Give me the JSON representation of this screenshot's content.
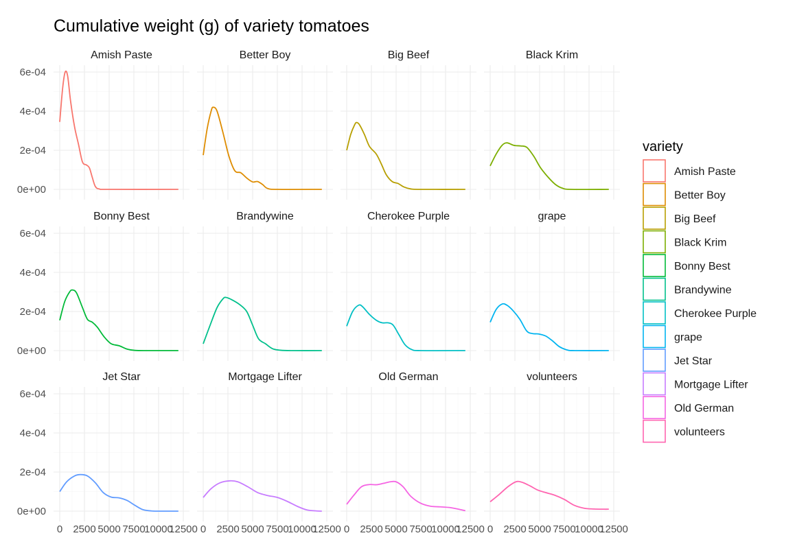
{
  "chart_data": {
    "type": "line",
    "subtype": "density",
    "title": "Cumulative weight (g) of variety tomatoes",
    "xlabel": "",
    "ylabel": "",
    "xlim": [
      0,
      12500
    ],
    "ylim": [
      0,
      0.00062
    ],
    "x_ticks": [
      0,
      2500,
      5000,
      7500,
      10000,
      12500
    ],
    "x_tick_labels": [
      "0",
      "2500",
      "5000",
      "7500",
      "10000",
      "12500"
    ],
    "y_ticks": [
      0,
      0.0002,
      0.0004,
      0.0006
    ],
    "y_tick_labels": [
      "0e+00",
      "2e-04",
      "4e-04",
      "6e-04"
    ],
    "grid": true,
    "facet_layout": "4 columns x 3 rows",
    "legend": {
      "title": "variety",
      "position": "right"
    },
    "series": [
      {
        "name": "Amish Paste",
        "color": "#F8766D",
        "points": [
          [
            0,
            0.000345
          ],
          [
            300,
            0.00052
          ],
          [
            550,
            0.0006
          ],
          [
            800,
            0.00058
          ],
          [
            1100,
            0.00045
          ],
          [
            1500,
            0.00032
          ],
          [
            1900,
            0.00023
          ],
          [
            2300,
            0.00014
          ],
          [
            2700,
            0.000125
          ],
          [
            3000,
            0.00011
          ],
          [
            3300,
            6e-05
          ],
          [
            3600,
            1.5e-05
          ],
          [
            4000,
            2e-06
          ],
          [
            5000,
            0
          ],
          [
            12000,
            0
          ]
        ]
      },
      {
        "name": "Better Boy",
        "color": "#DE8C00",
        "points": [
          [
            0,
            0.000175
          ],
          [
            400,
            0.00031
          ],
          [
            800,
            0.0004
          ],
          [
            1000,
            0.00042
          ],
          [
            1400,
            0.0004
          ],
          [
            2000,
            0.00029
          ],
          [
            2600,
            0.00017
          ],
          [
            3200,
            9.5e-05
          ],
          [
            3800,
            8.5e-05
          ],
          [
            4400,
            5.8e-05
          ],
          [
            5000,
            3.8e-05
          ],
          [
            5500,
            4e-05
          ],
          [
            6000,
            2.5e-05
          ],
          [
            6500,
            5e-06
          ],
          [
            7500,
            0
          ],
          [
            12000,
            0
          ]
        ]
      },
      {
        "name": "Big Beef",
        "color": "#B79F00",
        "points": [
          [
            0,
            0.0002
          ],
          [
            400,
            0.00028
          ],
          [
            800,
            0.00033
          ],
          [
            1000,
            0.000342
          ],
          [
            1300,
            0.00033
          ],
          [
            1800,
            0.00028
          ],
          [
            2300,
            0.00022
          ],
          [
            3000,
            0.00018
          ],
          [
            3500,
            0.00013
          ],
          [
            4000,
            7.5e-05
          ],
          [
            4600,
            4e-05
          ],
          [
            5200,
            3e-05
          ],
          [
            5800,
            1.2e-05
          ],
          [
            6500,
            2e-06
          ],
          [
            7500,
            0
          ],
          [
            12000,
            0
          ]
        ]
      },
      {
        "name": "Black Krim",
        "color": "#7CAE00",
        "points": [
          [
            0,
            0.00012
          ],
          [
            600,
            0.00018
          ],
          [
            1200,
            0.000225
          ],
          [
            1700,
            0.000238
          ],
          [
            2400,
            0.000225
          ],
          [
            3100,
            0.000222
          ],
          [
            3700,
            0.000215
          ],
          [
            4400,
            0.00017
          ],
          [
            5100,
            0.00011
          ],
          [
            5900,
            6e-05
          ],
          [
            6600,
            2.5e-05
          ],
          [
            7300,
            6e-06
          ],
          [
            8200,
            0
          ],
          [
            12000,
            0
          ]
        ]
      },
      {
        "name": "Bonny Best",
        "color": "#00BA38",
        "points": [
          [
            0,
            0.000155
          ],
          [
            500,
            0.00025
          ],
          [
            1000,
            0.0003
          ],
          [
            1300,
            0.00031
          ],
          [
            1700,
            0.000295
          ],
          [
            2300,
            0.00022
          ],
          [
            2800,
            0.00016
          ],
          [
            3300,
            0.000145
          ],
          [
            3800,
            0.00012
          ],
          [
            4500,
            7e-05
          ],
          [
            5200,
            3.5e-05
          ],
          [
            6000,
            2.5e-05
          ],
          [
            6800,
            8e-06
          ],
          [
            7600,
            1e-06
          ],
          [
            9000,
            0
          ],
          [
            12000,
            0
          ]
        ]
      },
      {
        "name": "Brandywine",
        "color": "#00C08B",
        "points": [
          [
            0,
            3.5e-05
          ],
          [
            700,
            0.00013
          ],
          [
            1400,
            0.00022
          ],
          [
            2000,
            0.000265
          ],
          [
            2300,
            0.000272
          ],
          [
            2900,
            0.00026
          ],
          [
            3700,
            0.000235
          ],
          [
            4400,
            0.0002
          ],
          [
            5000,
            0.00013
          ],
          [
            5600,
            6e-05
          ],
          [
            6300,
            3.5e-05
          ],
          [
            7000,
            1e-05
          ],
          [
            7800,
            2e-06
          ],
          [
            9000,
            0
          ],
          [
            12000,
            0
          ]
        ]
      },
      {
        "name": "Cherokee Purple",
        "color": "#00BFC4",
        "points": [
          [
            0,
            0.000125
          ],
          [
            600,
            0.0002
          ],
          [
            1200,
            0.000232
          ],
          [
            1600,
            0.000225
          ],
          [
            2300,
            0.000185
          ],
          [
            3000,
            0.000155
          ],
          [
            3600,
            0.000142
          ],
          [
            4200,
            0.000142
          ],
          [
            4700,
            0.00013
          ],
          [
            5300,
            8e-05
          ],
          [
            5900,
            3e-05
          ],
          [
            6600,
            5e-06
          ],
          [
            7500,
            0
          ],
          [
            12000,
            0
          ]
        ]
      },
      {
        "name": "grape",
        "color": "#00B4F0",
        "points": [
          [
            0,
            0.000145
          ],
          [
            600,
            0.00021
          ],
          [
            1200,
            0.000238
          ],
          [
            1700,
            0.000232
          ],
          [
            2300,
            0.000205
          ],
          [
            3000,
            0.00016
          ],
          [
            3700,
            0.0001
          ],
          [
            4300,
            8.7e-05
          ],
          [
            4900,
            8.5e-05
          ],
          [
            5600,
            7.5e-05
          ],
          [
            6300,
            5e-05
          ],
          [
            7000,
            2e-05
          ],
          [
            7800,
            3e-06
          ],
          [
            8600,
            0
          ],
          [
            12000,
            0
          ]
        ]
      },
      {
        "name": "Jet Star",
        "color": "#619CFF",
        "points": [
          [
            0,
            0.0001
          ],
          [
            700,
            0.00015
          ],
          [
            1500,
            0.00018
          ],
          [
            2100,
            0.000187
          ],
          [
            2800,
            0.00018
          ],
          [
            3600,
            0.000145
          ],
          [
            4400,
            9.5e-05
          ],
          [
            5200,
            7.2e-05
          ],
          [
            6000,
            6.8e-05
          ],
          [
            6800,
            5.5e-05
          ],
          [
            7600,
            3e-05
          ],
          [
            8400,
            8e-06
          ],
          [
            9300,
            1e-06
          ],
          [
            10500,
            0
          ],
          [
            12000,
            0
          ]
        ]
      },
      {
        "name": "Mortgage Lifter",
        "color": "#C77CFF",
        "points": [
          [
            0,
            7e-05
          ],
          [
            800,
            0.000115
          ],
          [
            1700,
            0.000145
          ],
          [
            2700,
            0.000155
          ],
          [
            3500,
            0.00015
          ],
          [
            4500,
            0.000125
          ],
          [
            5500,
            9.5e-05
          ],
          [
            6500,
            8e-05
          ],
          [
            7500,
            7e-05
          ],
          [
            8500,
            5e-05
          ],
          [
            9500,
            2.5e-05
          ],
          [
            10500,
            6e-06
          ],
          [
            11500,
            1e-06
          ],
          [
            12000,
            0
          ]
        ]
      },
      {
        "name": "Old German",
        "color": "#F564E3",
        "points": [
          [
            0,
            3.5e-05
          ],
          [
            700,
            8e-05
          ],
          [
            1500,
            0.000125
          ],
          [
            2300,
            0.000136
          ],
          [
            3000,
            0.000135
          ],
          [
            3700,
            0.000142
          ],
          [
            4400,
            0.00015
          ],
          [
            5000,
            0.00015
          ],
          [
            5700,
            0.000125
          ],
          [
            6500,
            7.5e-05
          ],
          [
            7500,
            4e-05
          ],
          [
            8500,
            2.5e-05
          ],
          [
            9500,
            2.2e-05
          ],
          [
            10500,
            1.8e-05
          ],
          [
            11500,
            8e-06
          ],
          [
            12000,
            2e-06
          ]
        ]
      },
      {
        "name": "volunteers",
        "color": "#FF64B0",
        "points": [
          [
            0,
            4.8e-05
          ],
          [
            900,
            8.5e-05
          ],
          [
            1800,
            0.000125
          ],
          [
            2600,
            0.00015
          ],
          [
            3200,
            0.000148
          ],
          [
            4000,
            0.00013
          ],
          [
            4800,
            0.000108
          ],
          [
            5600,
            9.5e-05
          ],
          [
            6500,
            8.2e-05
          ],
          [
            7500,
            6e-05
          ],
          [
            8500,
            3e-05
          ],
          [
            9500,
            1.5e-05
          ],
          [
            10500,
            1.1e-05
          ],
          [
            11500,
            1e-05
          ],
          [
            12000,
            1e-05
          ]
        ]
      }
    ]
  }
}
